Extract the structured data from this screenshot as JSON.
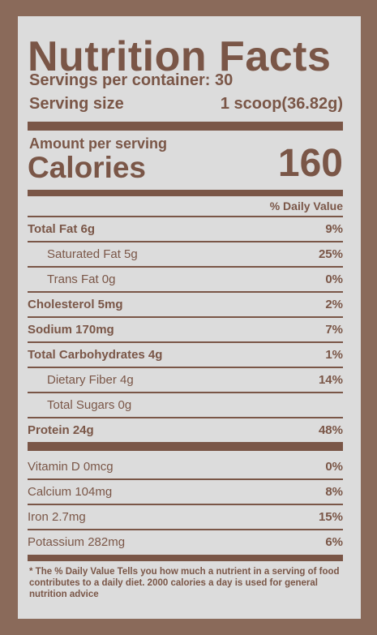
{
  "label": {
    "title": "Nutrition Facts",
    "servings": "Servings per container: 30",
    "serving_size_label": "Serving size",
    "serving_size_value": "1 scoop(36.82g)",
    "amount_per_serving": "Amount per serving",
    "calories_label": "Calories",
    "calories_value": "160",
    "daily_value_header": "% Daily Value",
    "nutrients": [
      {
        "name": "Total Fat 6g",
        "dv": "9%"
      },
      {
        "name": "Saturated Fat 5g",
        "dv": "25%"
      },
      {
        "name": "Trans Fat 0g",
        "dv": "0%"
      },
      {
        "name": "Cholesterol 5mg",
        "dv": "2%"
      },
      {
        "name": "Sodium 170mg",
        "dv": "7%"
      },
      {
        "name": "Total Carbohydrates 4g",
        "dv": "1%"
      },
      {
        "name": "Dietary Fiber 4g",
        "dv": "14%"
      },
      {
        "name": "Total Sugars 0g",
        "dv": ""
      },
      {
        "name": "Protein 24g",
        "dv": "48%"
      }
    ],
    "vitamins": [
      {
        "name": "Vitamin D 0mcg",
        "dv": "0%"
      },
      {
        "name": "Calcium 104mg",
        "dv": "8%"
      },
      {
        "name": "Iron 2.7mg",
        "dv": "15%"
      },
      {
        "name": "Potassium 282mg",
        "dv": "6%"
      }
    ],
    "footnote": "* The % Daily Value Tells you how much a nutrient in a serving of food contributes to a daily diet. 2000 calories a day is used for general nutrition advice"
  },
  "colors": {
    "ink": "#7a5647",
    "background": "#dcdcdc",
    "frame": "#8a6a5a"
  }
}
